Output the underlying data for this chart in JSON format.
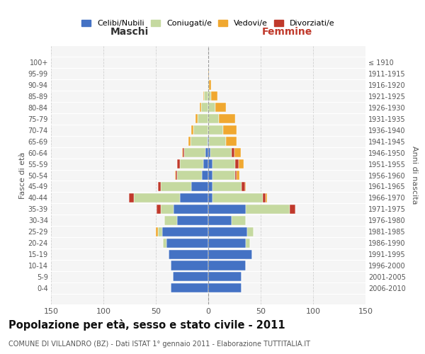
{
  "age_groups": [
    "0-4",
    "5-9",
    "10-14",
    "15-19",
    "20-24",
    "25-29",
    "30-34",
    "35-39",
    "40-44",
    "45-49",
    "50-54",
    "55-59",
    "60-64",
    "65-69",
    "70-74",
    "75-79",
    "80-84",
    "85-89",
    "90-94",
    "95-99",
    "100+"
  ],
  "birth_years": [
    "2006-2010",
    "2001-2005",
    "1996-2000",
    "1991-1995",
    "1986-1990",
    "1981-1985",
    "1976-1980",
    "1971-1975",
    "1966-1970",
    "1961-1965",
    "1956-1960",
    "1951-1955",
    "1946-1950",
    "1941-1945",
    "1936-1940",
    "1931-1935",
    "1926-1930",
    "1921-1925",
    "1916-1920",
    "1911-1915",
    "≤ 1910"
  ],
  "males": {
    "celibi": [
      36,
      34,
      36,
      38,
      40,
      44,
      30,
      33,
      27,
      16,
      6,
      5,
      3,
      1,
      0,
      0,
      0,
      0,
      0,
      0,
      0
    ],
    "coniugati": [
      0,
      0,
      0,
      0,
      3,
      4,
      12,
      12,
      44,
      29,
      24,
      22,
      20,
      16,
      14,
      10,
      7,
      4,
      1,
      0,
      0
    ],
    "vedovi": [
      0,
      0,
      0,
      0,
      0,
      2,
      0,
      0,
      0,
      0,
      1,
      0,
      1,
      2,
      2,
      2,
      1,
      1,
      0,
      0,
      0
    ],
    "divorziati": [
      0,
      0,
      0,
      0,
      0,
      0,
      0,
      4,
      5,
      3,
      1,
      3,
      1,
      0,
      0,
      0,
      0,
      0,
      0,
      0,
      0
    ]
  },
  "females": {
    "nubili": [
      32,
      32,
      36,
      42,
      36,
      37,
      22,
      36,
      4,
      4,
      4,
      4,
      2,
      1,
      0,
      0,
      0,
      0,
      0,
      0,
      0
    ],
    "coniugate": [
      0,
      0,
      0,
      0,
      4,
      6,
      14,
      42,
      48,
      28,
      22,
      22,
      20,
      16,
      14,
      10,
      7,
      3,
      1,
      0,
      0
    ],
    "vedove": [
      0,
      0,
      0,
      0,
      0,
      0,
      0,
      0,
      1,
      1,
      3,
      5,
      6,
      10,
      13,
      16,
      10,
      6,
      2,
      1,
      0
    ],
    "divorziate": [
      0,
      0,
      0,
      0,
      0,
      0,
      0,
      5,
      3,
      3,
      1,
      3,
      3,
      0,
      0,
      0,
      0,
      0,
      0,
      0,
      0
    ]
  },
  "colors": {
    "celibi_nubili": "#4472c4",
    "coniugati": "#c5d9a0",
    "vedovi": "#f0a830",
    "divorziati": "#c0392b"
  },
  "title": "Popolazione per età, sesso e stato civile - 2011",
  "subtitle": "COMUNE DI VILLANDRO (BZ) - Dati ISTAT 1° gennaio 2011 - Elaborazione TUTTITALIA.IT",
  "xlabel_left": "Maschi",
  "xlabel_right": "Femmine",
  "ylabel_left": "Fasce di età",
  "ylabel_right": "Anni di nascita",
  "xlim": 150,
  "background_color": "#f5f5f5",
  "grid_color": "#cccccc"
}
